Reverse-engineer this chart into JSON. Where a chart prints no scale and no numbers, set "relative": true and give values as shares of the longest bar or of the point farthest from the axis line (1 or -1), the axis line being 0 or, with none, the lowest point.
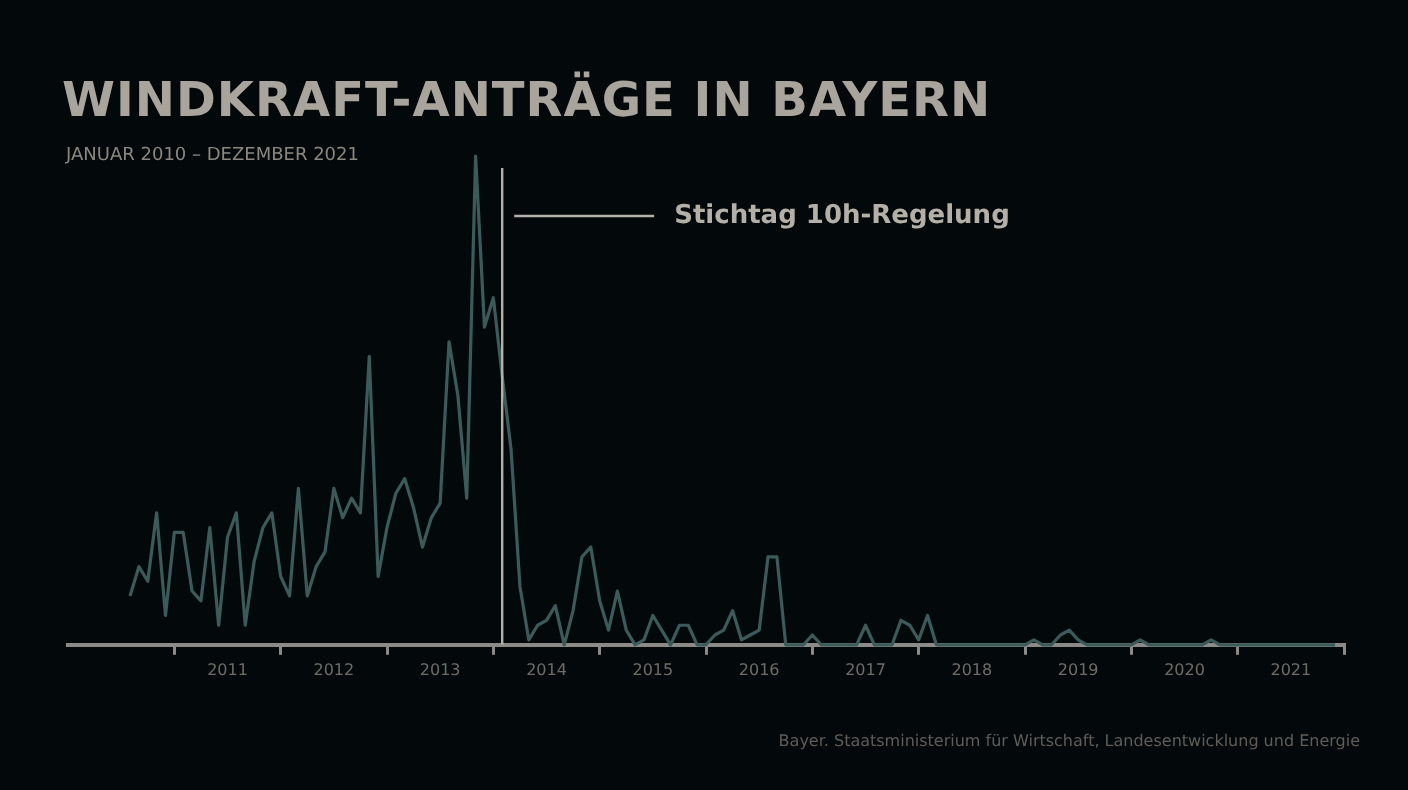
{
  "chart_data": {
    "type": "line",
    "title": "WINDKRAFT-ANTRÄGE IN BAYERN",
    "subtitle": "JANUAR 2010 – DEZEMBER 2021",
    "relative": true,
    "x": [
      "2010-08",
      "2010-09",
      "2010-10",
      "2010-11",
      "2010-12",
      "2011-01",
      "2011-02",
      "2011-03",
      "2011-04",
      "2011-05",
      "2011-06",
      "2011-07",
      "2011-08",
      "2011-09",
      "2011-10",
      "2011-11",
      "2011-12",
      "2012-01",
      "2012-02",
      "2012-03",
      "2012-04",
      "2012-05",
      "2012-06",
      "2012-07",
      "2012-08",
      "2012-09",
      "2012-10",
      "2012-11",
      "2012-12",
      "2013-01",
      "2013-02",
      "2013-03",
      "2013-04",
      "2013-05",
      "2013-06",
      "2013-07",
      "2013-08",
      "2013-09",
      "2013-10",
      "2013-11",
      "2013-12",
      "2014-01",
      "2014-02",
      "2014-03",
      "2014-04",
      "2014-05",
      "2014-06",
      "2014-07",
      "2014-08",
      "2014-09",
      "2014-10",
      "2014-11",
      "2014-12",
      "2015-01",
      "2015-02",
      "2015-03",
      "2015-04",
      "2015-05",
      "2015-06",
      "2015-07",
      "2015-08",
      "2015-09",
      "2015-10",
      "2015-11",
      "2015-12",
      "2016-01",
      "2016-02",
      "2016-03",
      "2016-04",
      "2016-05",
      "2016-06",
      "2016-07",
      "2016-08",
      "2016-09",
      "2016-10",
      "2016-11",
      "2016-12",
      "2017-01",
      "2017-02",
      "2017-03",
      "2017-04",
      "2017-05",
      "2017-06",
      "2017-07",
      "2017-08",
      "2017-09",
      "2017-10",
      "2017-11",
      "2017-12",
      "2018-01",
      "2018-02",
      "2018-03",
      "2018-04",
      "2018-05",
      "2018-06",
      "2018-07",
      "2018-08",
      "2018-09",
      "2018-10",
      "2018-11",
      "2018-12",
      "2019-01",
      "2019-02",
      "2019-03",
      "2019-04",
      "2019-05",
      "2019-06",
      "2019-07",
      "2019-08",
      "2019-09",
      "2019-10",
      "2019-11",
      "2019-12",
      "2020-01",
      "2020-02",
      "2020-03",
      "2020-04",
      "2020-05",
      "2020-06",
      "2020-07",
      "2020-08",
      "2020-09",
      "2020-10",
      "2020-11",
      "2020-12",
      "2021-01",
      "2021-02",
      "2021-03",
      "2021-04",
      "2021-05",
      "2021-06",
      "2021-07",
      "2021-08",
      "2021-09",
      "2021-10",
      "2021-11",
      "2021-12"
    ],
    "series": [
      {
        "color": "#3b5a5a",
        "values": [
          0.1,
          0.16,
          0.13,
          0.27,
          0.06,
          0.23,
          0.23,
          0.11,
          0.09,
          0.24,
          0.04,
          0.22,
          0.27,
          0.04,
          0.17,
          0.24,
          0.27,
          0.14,
          0.1,
          0.32,
          0.1,
          0.16,
          0.19,
          0.32,
          0.26,
          0.3,
          0.27,
          0.59,
          0.14,
          0.24,
          0.31,
          0.34,
          0.28,
          0.2,
          0.26,
          0.29,
          0.62,
          0.51,
          0.3,
          1,
          0.65,
          0.71,
          0.55,
          0.4,
          0.12,
          0.01,
          0.04,
          0.05,
          0.08,
          0,
          0.07,
          0.18,
          0.2,
          0.09,
          0.03,
          0.11,
          0.03,
          0,
          0.01,
          0.06,
          0.03,
          0,
          0.04,
          0.04,
          0,
          0,
          0.02,
          0.03,
          0.07,
          0.01,
          0.02,
          0.03,
          0.18,
          0.18,
          0,
          0,
          0,
          0.02,
          0,
          0,
          0,
          0,
          0,
          0.04,
          0,
          0,
          0,
          0.05,
          0.04,
          0.01,
          0.06,
          0,
          0,
          0,
          0,
          0,
          0,
          0,
          0,
          0,
          0,
          0,
          0.01,
          0,
          0,
          0.02,
          0.03,
          0.01,
          0,
          0,
          0,
          0,
          0,
          0,
          0.01,
          0,
          0,
          0,
          0,
          0,
          0,
          0,
          0.01,
          0,
          0,
          0,
          0,
          0,
          0,
          0,
          0,
          0,
          0,
          0,
          0,
          0,
          0
        ]
      }
    ],
    "xlim": [
      "2010-01",
      "2022-01"
    ],
    "xticks": [
      {
        "value": "2011-01",
        "label": null
      },
      {
        "value": "2011-07",
        "label": "2011"
      },
      {
        "value": "2012-01",
        "label": null
      },
      {
        "value": "2012-07",
        "label": "2012"
      },
      {
        "value": "2013-01",
        "label": null
      },
      {
        "value": "2013-07",
        "label": "2013"
      },
      {
        "value": "2014-01",
        "label": null
      },
      {
        "value": "2014-07",
        "label": "2014"
      },
      {
        "value": "2015-01",
        "label": null
      },
      {
        "value": "2015-07",
        "label": "2015"
      },
      {
        "value": "2016-01",
        "label": null
      },
      {
        "value": "2016-07",
        "label": "2016"
      },
      {
        "value": "2017-01",
        "label": null
      },
      {
        "value": "2017-07",
        "label": "2017"
      },
      {
        "value": "2018-01",
        "label": null
      },
      {
        "value": "2018-07",
        "label": "2018"
      },
      {
        "value": "2019-01",
        "label": null
      },
      {
        "value": "2019-07",
        "label": "2019"
      },
      {
        "value": "2020-01",
        "label": null
      },
      {
        "value": "2020-07",
        "label": "2020"
      },
      {
        "value": "2021-01",
        "label": null
      },
      {
        "value": "2021-07",
        "label": "2021"
      },
      {
        "value": "2022-01",
        "label": null
      }
    ],
    "ref_lines": [
      {
        "axis": "x",
        "value": "2014-02",
        "label": "Stichtag 10h-Regelung",
        "color": "#b4b0a8"
      }
    ],
    "annotations": [
      "Bayer. Staatsministerium für Wirtschaft, Landesentwicklung und Energie"
    ],
    "legend": false
  }
}
